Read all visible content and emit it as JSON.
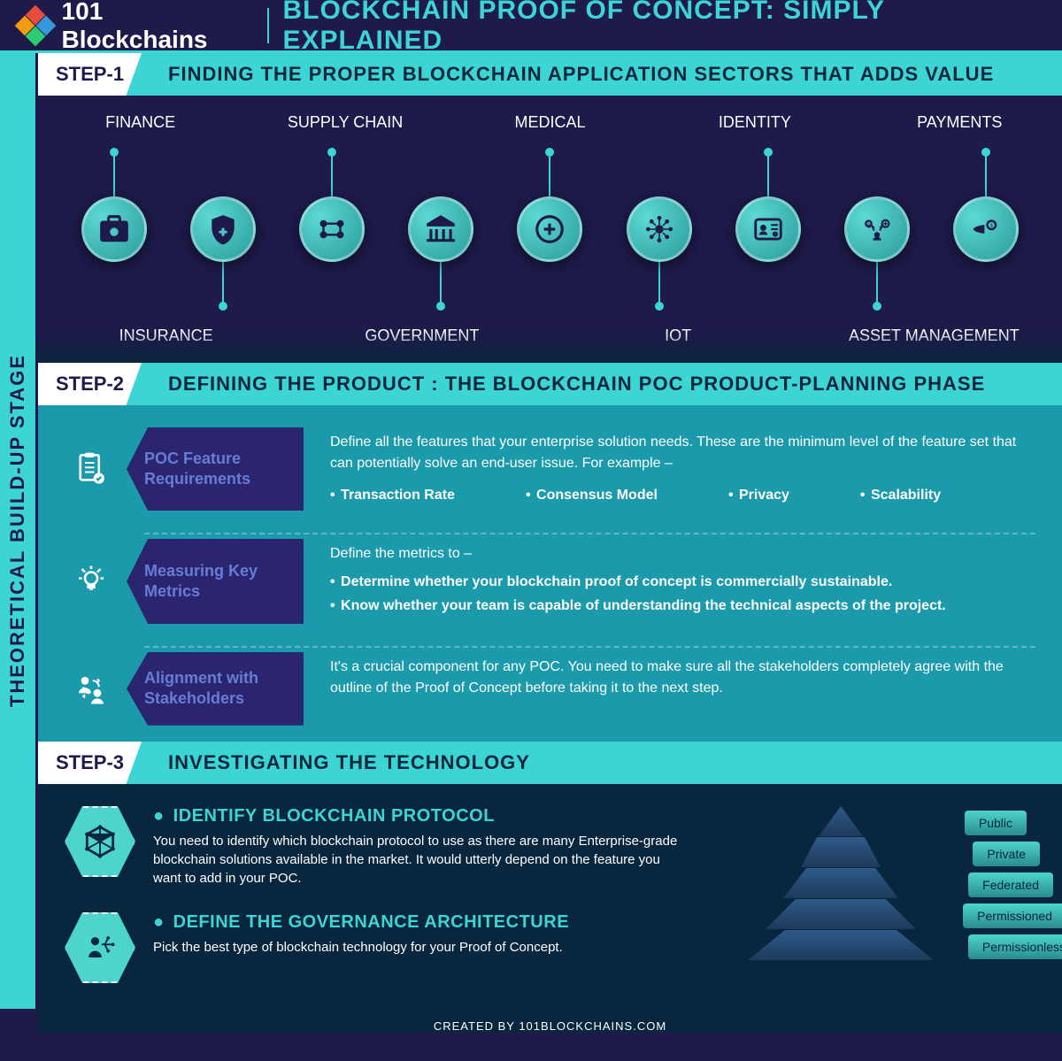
{
  "header": {
    "brand": "101 Blockchains",
    "title": "BLOCKCHAIN PROOF OF CONCEPT: SIMPLY EXPLAINED",
    "logo_colors": [
      "#e84c3d",
      "#f39c12",
      "#3498db",
      "#2ecc71"
    ]
  },
  "sidebar": {
    "label": "THEORETICAL BUILD-UP STAGE"
  },
  "step1": {
    "label": "STEP-1",
    "title": "FINDING THE PROPER BLOCKCHAIN APPLICATION SECTORS THAT ADDS VALUE",
    "sectors_top": [
      "FINANCE",
      "SUPPLY CHAIN",
      "MEDICAL",
      "IDENTITY",
      "PAYMENTS"
    ],
    "sectors_bottom": [
      "INSURANCE",
      "GOVERNMENT",
      "IOT",
      "ASSET MANAGEMENT"
    ],
    "icons": [
      "finance",
      "insurance",
      "supply-chain",
      "government",
      "medical",
      "iot",
      "identity",
      "asset-management",
      "payments"
    ],
    "connect": [
      "up",
      "down",
      "up",
      "down",
      "up",
      "down",
      "up",
      "down",
      "up"
    ]
  },
  "step2": {
    "label": "STEP-2",
    "title": "DEFINING THE PRODUCT : THE BLOCKCHAIN POC PRODUCT-PLANNING PHASE",
    "cards": [
      {
        "label": "POC Feature Requirements",
        "icon": "checklist",
        "lead": "Define all the features that your enterprise solution needs. These are the minimum level of the feature set that can potentially solve an end-user issue. For example –",
        "bullets": [
          "Transaction Rate",
          "Consensus Model",
          "Privacy",
          "Scalability"
        ]
      },
      {
        "label": "Measuring Key Metrics",
        "icon": "idea",
        "lead": "Define the metrics to –",
        "bullets_v": [
          "Determine whether your blockchain proof of concept is commercially sustainable.",
          "Know whether your team is capable of understanding the technical aspects of the project."
        ]
      },
      {
        "label": "Alignment with Stakeholders",
        "icon": "people",
        "lead": "It's a crucial component for any POC. You need to make sure all the stakeholders completely agree with the outline of the Proof of Concept before taking it to the next step."
      }
    ]
  },
  "step3": {
    "label": "STEP-3",
    "title": "INVESTIGATING THE TECHNOLOGY",
    "items": [
      {
        "title": "IDENTIFY BLOCKCHAIN PROTOCOL",
        "desc": "You need to identify which blockchain protocol to use as there are many Enterprise-grade blockchain solutions available in the market. It would utterly depend on the feature you want to add in your POC.",
        "icon": "cube"
      },
      {
        "title": "DEFINE THE GOVERNANCE ARCHITECTURE",
        "desc": "Pick the best type of blockchain technology for your Proof of Concept.",
        "icon": "person-net"
      }
    ],
    "pyramid": [
      "Public",
      "Private",
      "Federated",
      "Permissioned",
      "Permissionless"
    ]
  },
  "footer": {
    "text": "CREATED BY 101BLOCKCHAINS.COM"
  },
  "colors": {
    "bg_dark": "#1e1a4a",
    "teal": "#3dd4d4",
    "teal_dark": "#1a9aab",
    "navy": "#08263e",
    "card_bg": "#2b2570",
    "card_text": "#667dd4"
  }
}
